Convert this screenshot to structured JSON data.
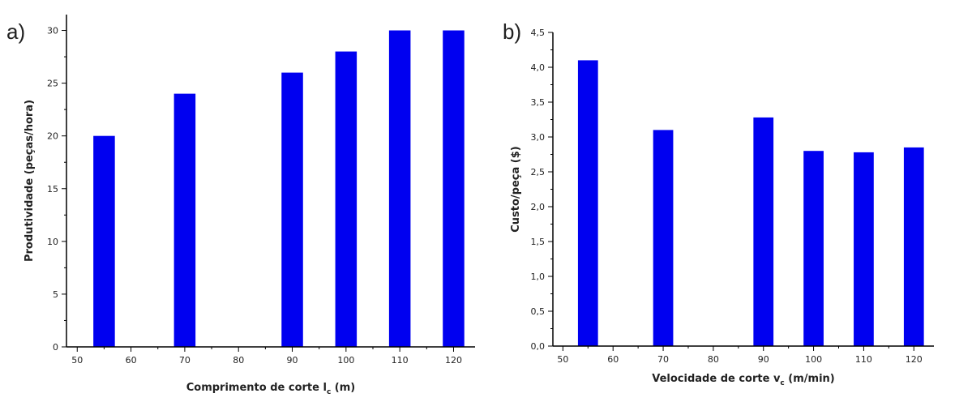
{
  "chart_data": [
    {
      "type": "bar",
      "panel_label": "a)",
      "x": [
        55,
        70,
        90,
        100,
        110,
        120
      ],
      "values": [
        20,
        24,
        26,
        28,
        30,
        30
      ],
      "xlabel": "Comprimento de corte l",
      "xlabel_subscript": "c",
      "xlabel_unit": "(m)",
      "ylabel": "Produtividade (peças/hora)",
      "xlim": [
        48,
        124
      ],
      "ylim": [
        0,
        31.5
      ],
      "xticks": [
        50,
        60,
        70,
        80,
        90,
        100,
        110,
        120
      ],
      "yticks": [
        0,
        5,
        10,
        15,
        20,
        25,
        30
      ],
      "ytick_labels": [
        "0",
        "5",
        "10",
        "15",
        "20",
        "25",
        "30"
      ],
      "grid": false,
      "bar_color": "#0000f0",
      "bar_width": 4
    },
    {
      "type": "bar",
      "panel_label": "b)",
      "x": [
        55,
        70,
        90,
        100,
        110,
        120
      ],
      "values": [
        4.1,
        3.1,
        3.28,
        2.8,
        2.78,
        2.85
      ],
      "xlabel": "Velocidade de corte v",
      "xlabel_subscript": "c",
      "xlabel_unit": "(m/min)",
      "ylabel": "Custo/peça ($)",
      "xlim": [
        48,
        124
      ],
      "ylim": [
        0,
        4.5
      ],
      "xticks": [
        50,
        60,
        70,
        80,
        90,
        100,
        110,
        120
      ],
      "yticks": [
        0,
        0.5,
        1,
        1.5,
        2,
        2.5,
        3,
        3.5,
        4,
        4.5
      ],
      "ytick_labels": [
        "0,0",
        "0,5",
        "1,0",
        "1,5",
        "2,0",
        "2,5",
        "3,0",
        "3,5",
        "4,0",
        "4,5"
      ],
      "grid": false,
      "bar_color": "#0000f0",
      "bar_width": 4
    }
  ]
}
